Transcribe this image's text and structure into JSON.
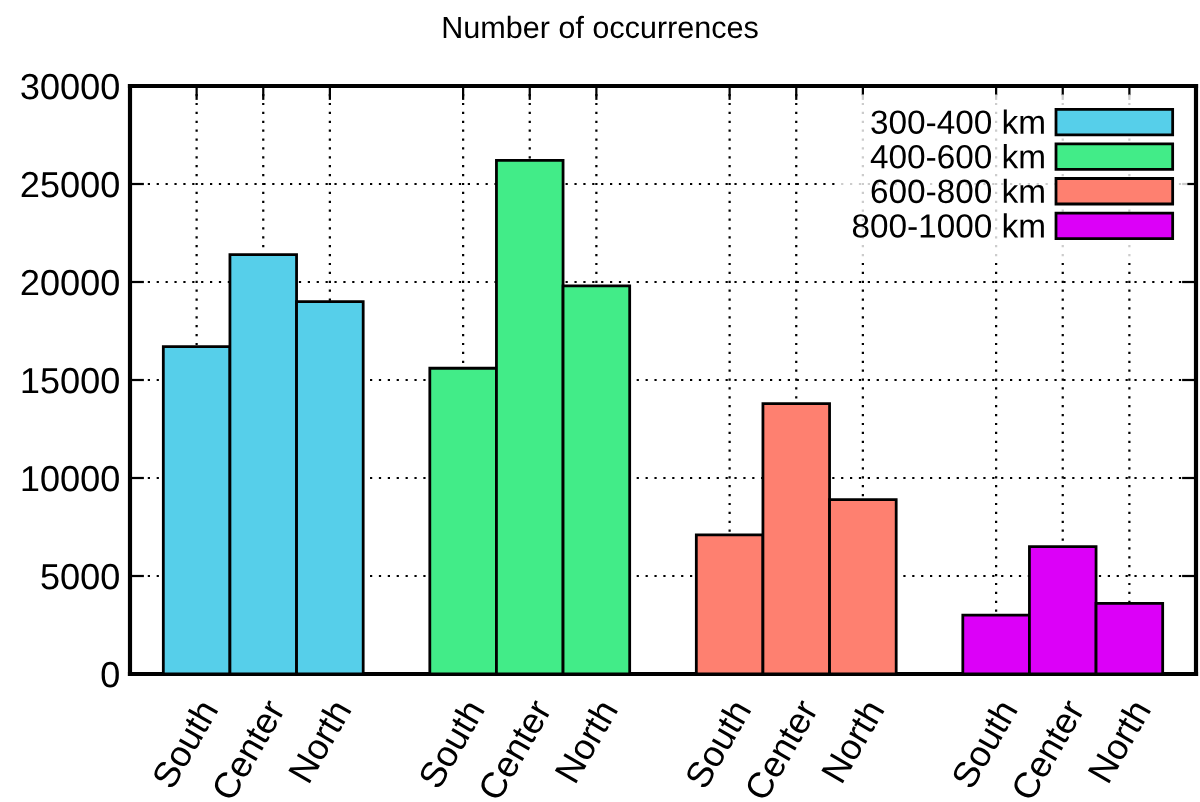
{
  "chart_data": {
    "type": "bar",
    "title": "Number of occurrences",
    "categories": [
      "South",
      "Center",
      "North",
      null,
      "South",
      "Center",
      "North",
      null,
      "South",
      "Center",
      "North",
      null,
      "South",
      "Center",
      "North"
    ],
    "series": [
      {
        "name": "300-400 km",
        "color": "#56cfea",
        "values": [
          16700,
          21400,
          19000,
          null,
          null,
          null,
          null,
          null,
          null,
          null,
          null,
          null,
          null,
          null,
          null
        ]
      },
      {
        "name": "400-600 km",
        "color": "#42ec88",
        "values": [
          null,
          null,
          null,
          null,
          15600,
          26200,
          19800,
          null,
          null,
          null,
          null,
          null,
          null,
          null,
          null
        ]
      },
      {
        "name": "600-800 km",
        "color": "#fe8070",
        "values": [
          null,
          null,
          null,
          null,
          null,
          null,
          null,
          null,
          7100,
          13800,
          8900,
          null,
          null,
          null,
          null
        ]
      },
      {
        "name": "800-1000 km",
        "color": "#dc00f8",
        "values": [
          null,
          null,
          null,
          null,
          null,
          null,
          null,
          null,
          null,
          null,
          null,
          null,
          3000,
          6500,
          3600
        ]
      }
    ],
    "ylim": [
      0,
      30000
    ],
    "yticks": [
      0,
      5000,
      10000,
      15000,
      20000,
      25000,
      30000
    ],
    "grid": true,
    "legend": "top right"
  }
}
